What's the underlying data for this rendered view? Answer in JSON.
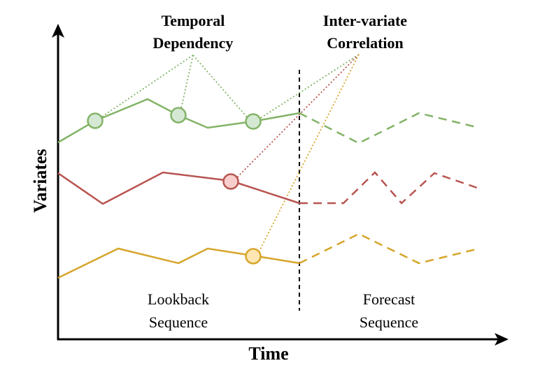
{
  "labels": {
    "temporal_line1": "Temporal",
    "temporal_line2": "Dependency",
    "inter_line1": "Inter-variate",
    "inter_line2": "Correlation",
    "lookback_line1": "Lookback",
    "lookback_line2": "Sequence",
    "forecast_line1": "Forecast",
    "forecast_line2": "Sequence",
    "x_axis": "Time",
    "y_axis": "Variates"
  },
  "colors": {
    "green_line": "#82b366",
    "green_fill": "#d5e8d4",
    "red_line": "#b85450",
    "red_fill": "#f8cecc",
    "yellow_line": "#d6a52a",
    "yellow_fill": "#ffe6b3",
    "axis": "#000000",
    "divider": "#000000"
  }
}
